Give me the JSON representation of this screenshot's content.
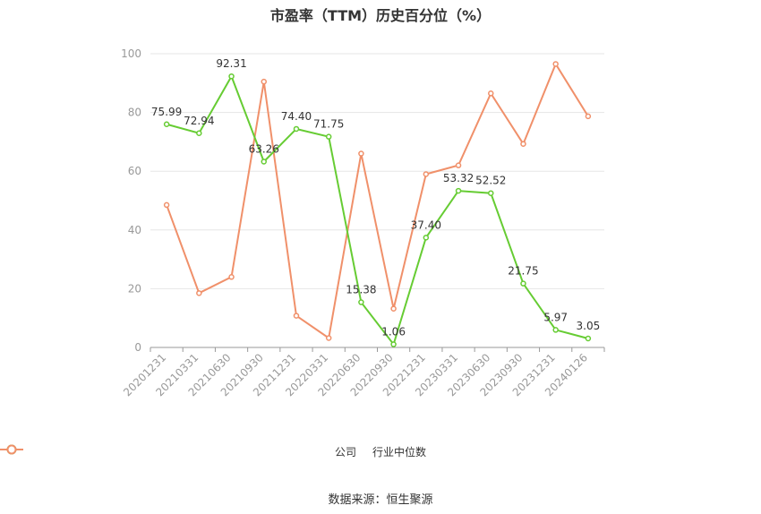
{
  "chart_data": {
    "type": "line",
    "title": "市盈率（TTM）历史百分位（%）",
    "categories": [
      "20201231",
      "20210331",
      "20210630",
      "20210930",
      "20211231",
      "20220331",
      "20220630",
      "20220930",
      "20221231",
      "20230331",
      "20230630",
      "20230930",
      "20231231",
      "20240126"
    ],
    "ylim": [
      0,
      100
    ],
    "yticks": [
      0,
      20,
      40,
      60,
      80,
      100
    ],
    "grid": true,
    "legend_position": "bottom",
    "series": [
      {
        "name": "公司",
        "color": "#66cc33",
        "values": [
          75.99,
          72.94,
          92.31,
          63.26,
          74.4,
          71.75,
          15.38,
          1.06,
          37.4,
          53.32,
          52.52,
          21.75,
          5.97,
          3.05
        ],
        "labels": [
          "75.99",
          "72.94",
          "92.31",
          "63.26",
          "74.40",
          "71.75",
          "15.38",
          "1.06",
          "37.40",
          "53.32",
          "52.52",
          "21.75",
          "5.97",
          "3.05"
        ]
      },
      {
        "name": "行业中位数",
        "color": "#f0906a",
        "values": [
          48.5,
          18.5,
          24.0,
          90.5,
          10.8,
          3.2,
          66.0,
          13.2,
          59.0,
          62.0,
          86.5,
          69.3,
          96.5,
          78.7
        ]
      }
    ]
  },
  "source": "数据来源：恒生聚源"
}
